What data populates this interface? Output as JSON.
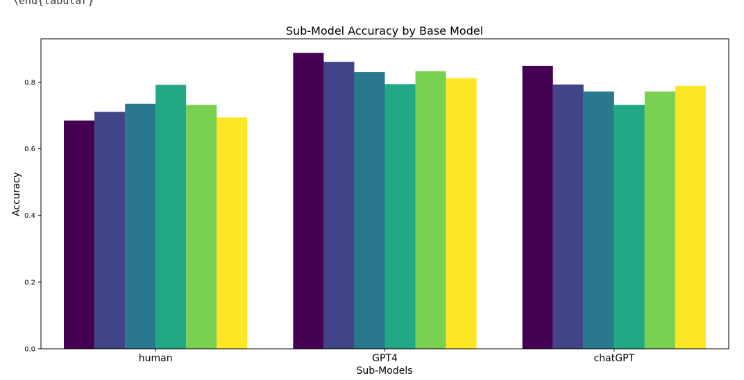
{
  "top_fragment_text": "\\end{tabular}",
  "chart_data": {
    "type": "bar",
    "title": "Sub-Model Accuracy by Base Model",
    "xlabel": "Sub-Models",
    "ylabel": "Accuracy",
    "categories": [
      "human",
      "GPT4",
      "chatGPT"
    ],
    "ylim": [
      0,
      0.93
    ],
    "yticks": [
      "0.0",
      "0.2",
      "0.4",
      "0.6",
      "0.8"
    ],
    "grid": false,
    "legend": "none",
    "series": [
      {
        "values": [
          0.685,
          0.888,
          0.849
        ],
        "color": "#440154"
      },
      {
        "values": [
          0.711,
          0.861,
          0.793
        ],
        "color": "#414487"
      },
      {
        "values": [
          0.735,
          0.83,
          0.772
        ],
        "color": "#2a788e"
      },
      {
        "values": [
          0.792,
          0.794,
          0.732
        ],
        "color": "#22a884"
      },
      {
        "values": [
          0.732,
          0.833,
          0.772
        ],
        "color": "#7ad151"
      },
      {
        "values": [
          0.694,
          0.812,
          0.789
        ],
        "color": "#fde725"
      }
    ]
  }
}
